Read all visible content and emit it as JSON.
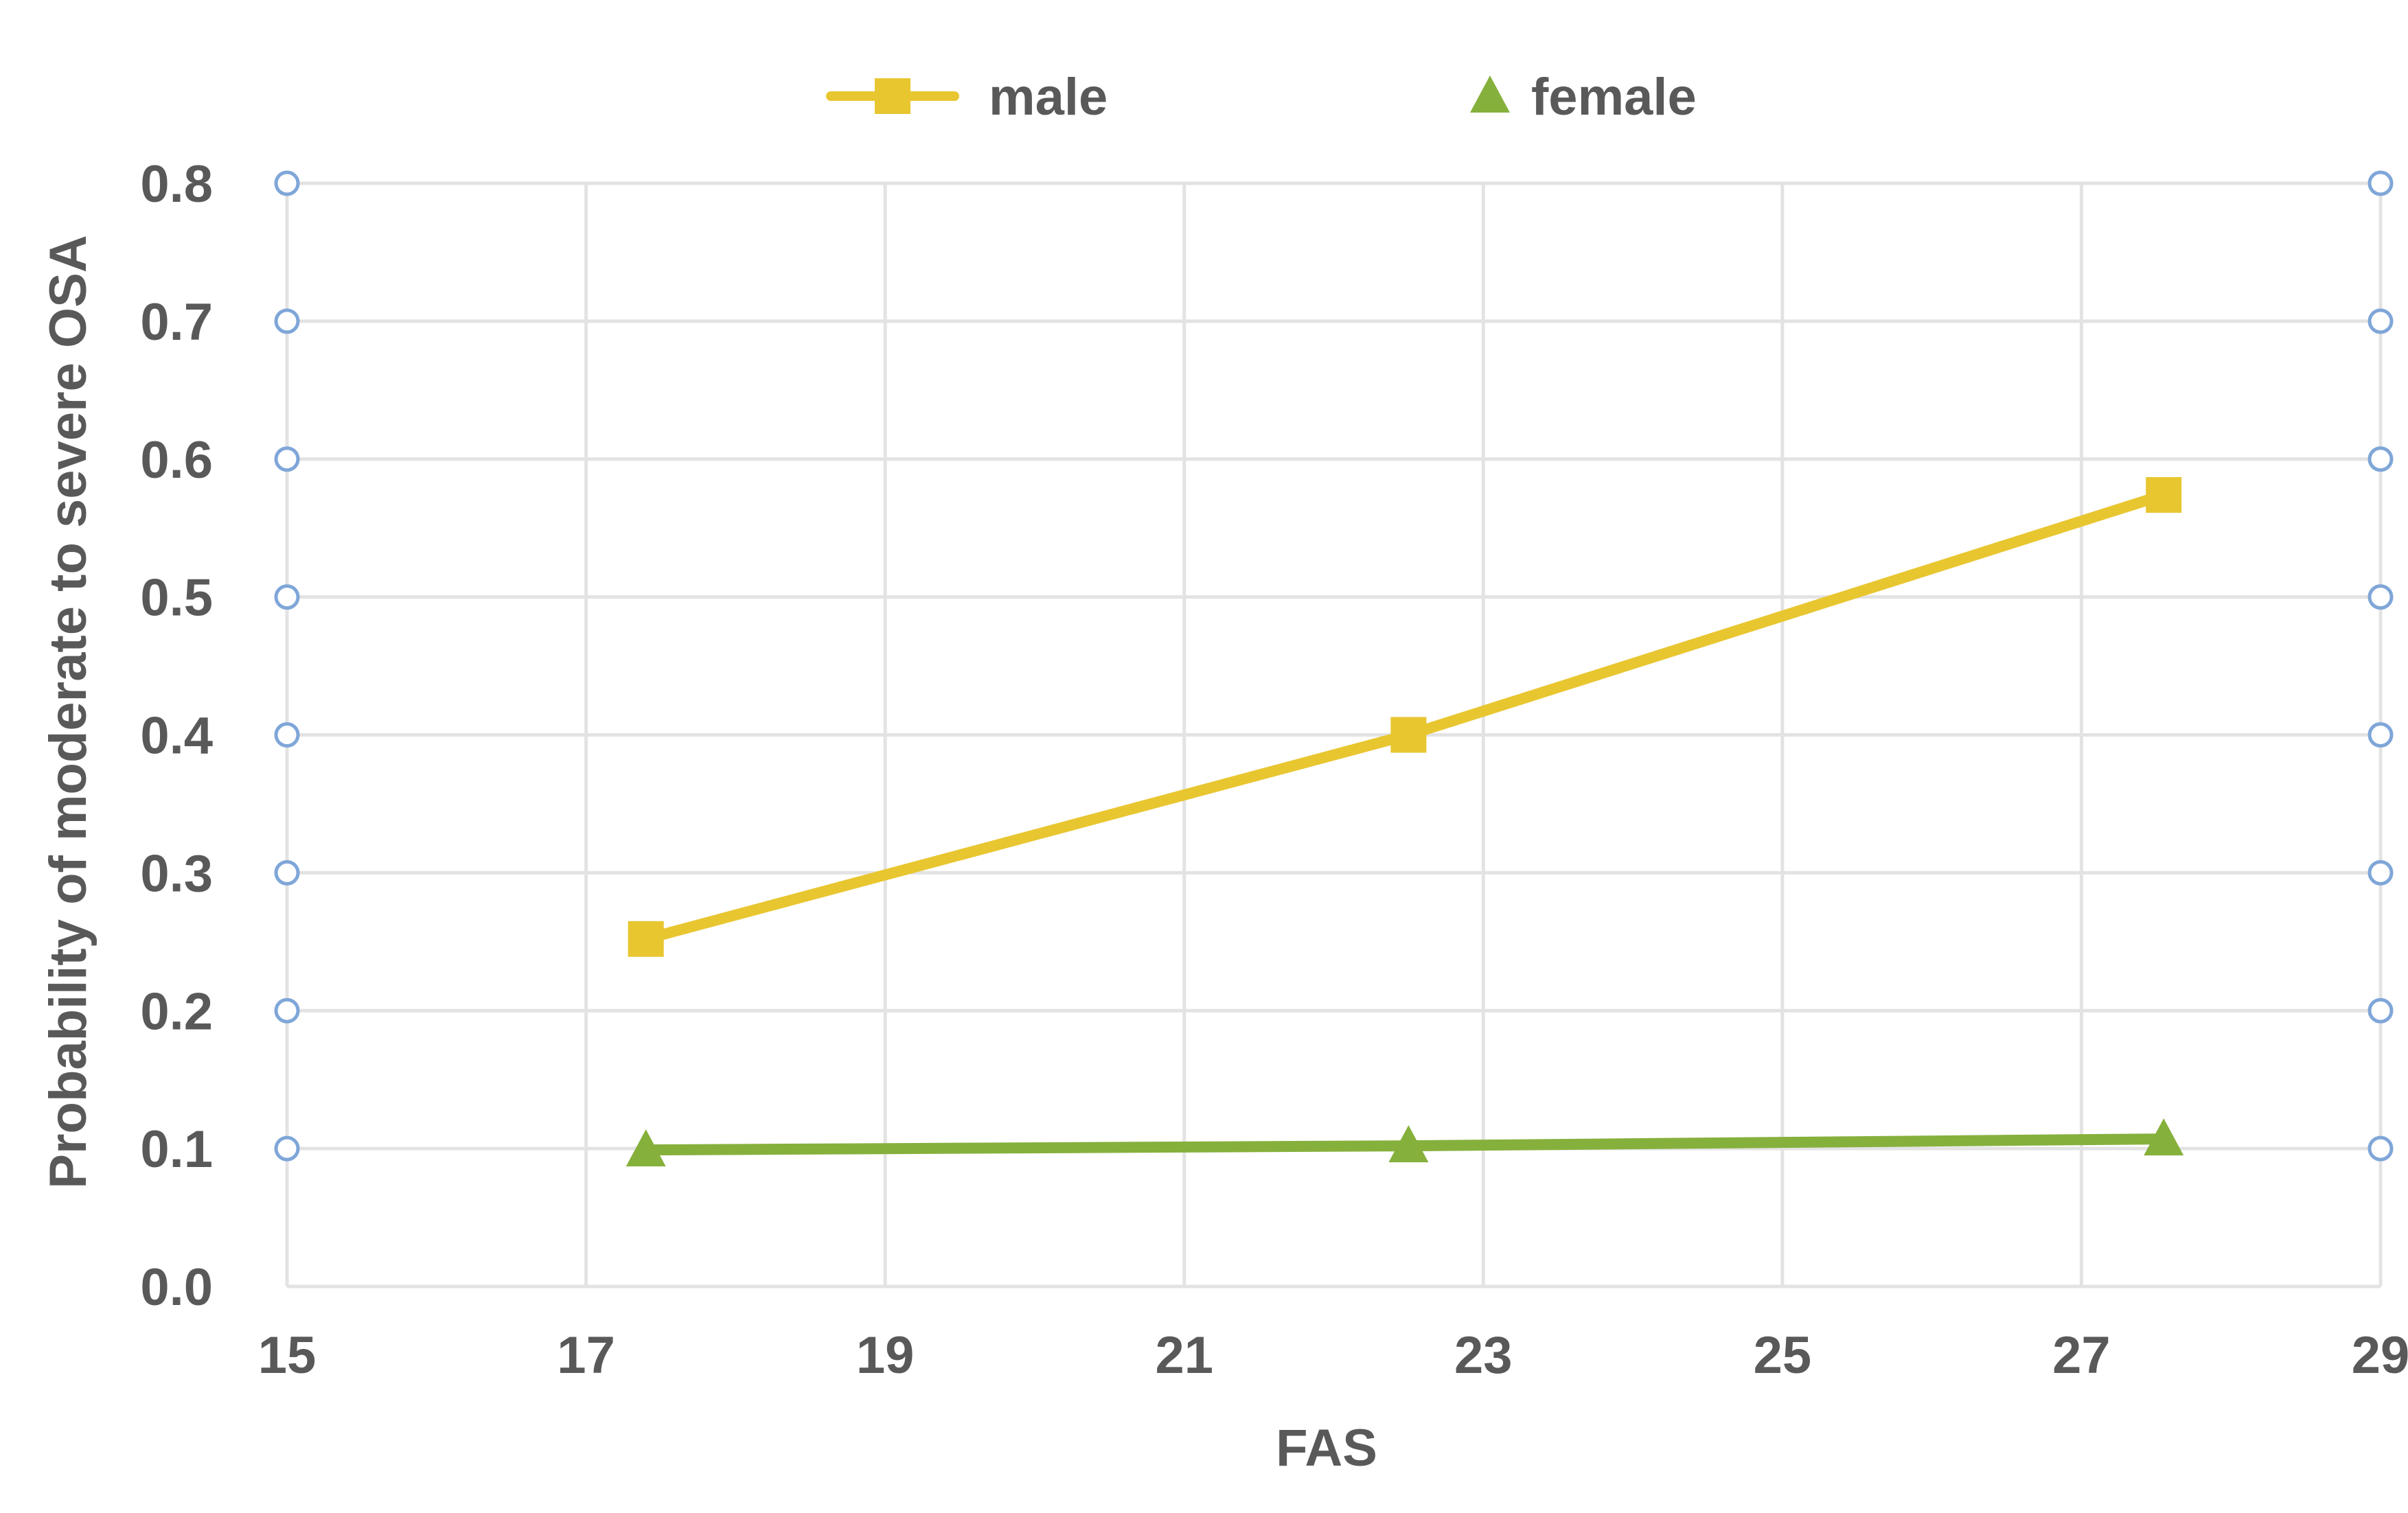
{
  "chart_data": {
    "type": "line",
    "title": "",
    "xlabel": "FAS",
    "ylabel": "Probability of moderate to severe OSA",
    "xlim": [
      15,
      29
    ],
    "ylim": [
      0,
      0.8
    ],
    "x_ticks": [
      15,
      17,
      19,
      21,
      23,
      25,
      27,
      29
    ],
    "y_ticks": [
      0.0,
      0.1,
      0.2,
      0.3,
      0.4,
      0.5,
      0.6,
      0.7,
      0.8
    ],
    "y_tick_labels": [
      "0.0",
      "0.1",
      "0.2",
      "0.3",
      "0.4",
      "0.5",
      "0.6",
      "0.7",
      "0.8"
    ],
    "grid": true,
    "legend_position": "top-center",
    "series": [
      {
        "name": "male",
        "marker": "square",
        "color": "#e8c630",
        "x": [
          17.4,
          22.5,
          27.55
        ],
        "y": [
          0.252,
          0.4,
          0.574
        ]
      },
      {
        "name": "female",
        "marker": "triangle",
        "color": "#86b03c",
        "x": [
          17.4,
          22.5,
          27.55
        ],
        "y": [
          0.099,
          0.102,
          0.107
        ]
      }
    ],
    "axis_markers": {
      "shape": "circle",
      "color": "#7fa6d8",
      "y": [
        0.1,
        0.2,
        0.3,
        0.4,
        0.5,
        0.6,
        0.7,
        0.8
      ]
    },
    "colors": {
      "text": "#595959",
      "grid": "#e3e3e3"
    }
  }
}
